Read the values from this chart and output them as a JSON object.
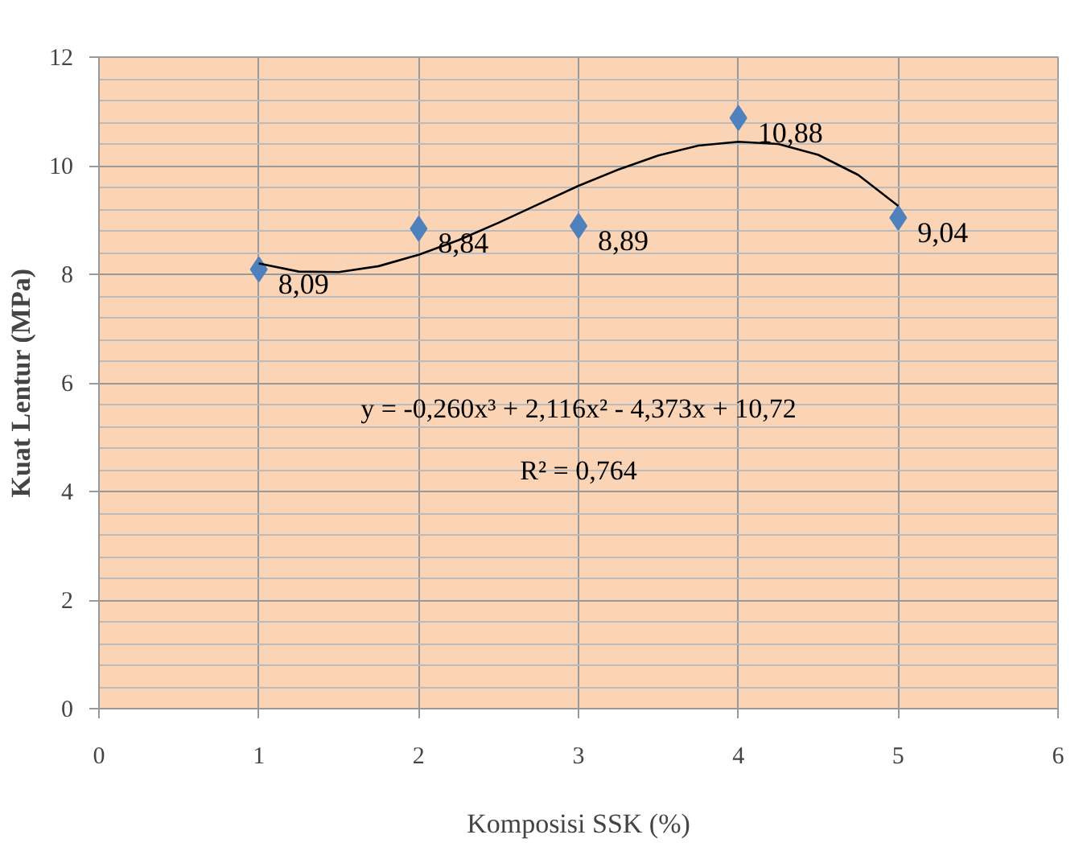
{
  "chart_data": {
    "type": "scatter",
    "xlabel": "Komposisi SSK (%)",
    "ylabel": "Kuat Lentur (MPa)",
    "xlim": [
      0,
      6
    ],
    "ylim": [
      0,
      12
    ],
    "xticks": [
      0,
      1,
      2,
      3,
      4,
      5,
      6
    ],
    "yticks": [
      0,
      2,
      4,
      6,
      8,
      10,
      12
    ],
    "grid": true,
    "series": [
      {
        "color": "#4f81bd",
        "marker": "diamond",
        "x": [
          1,
          2,
          3,
          4,
          5
        ],
        "values": [
          8.09,
          8.84,
          8.89,
          10.88,
          9.04
        ],
        "value_labels": [
          "8,09",
          "8,84",
          "8,89",
          "10,88",
          "9,04"
        ]
      },
      {
        "type": "line",
        "color": "#000000",
        "marker": "none",
        "line_style": "solid",
        "x": [
          1,
          1.25,
          1.5,
          1.75,
          2,
          2.25,
          2.5,
          2.75,
          3,
          3.25,
          3.5,
          3.75,
          4,
          4.25,
          4.5,
          4.75,
          5
        ],
        "values": [
          8.2,
          8.05,
          8.04,
          8.15,
          8.36,
          8.63,
          8.95,
          9.29,
          9.63,
          9.93,
          10.19,
          10.37,
          10.44,
          10.4,
          10.2,
          9.83,
          9.26
        ]
      }
    ],
    "annotations": [
      "y = -0,260x³ + 2,116x² - 4,373x + 10,72",
      "R² = 0,764"
    ]
  }
}
